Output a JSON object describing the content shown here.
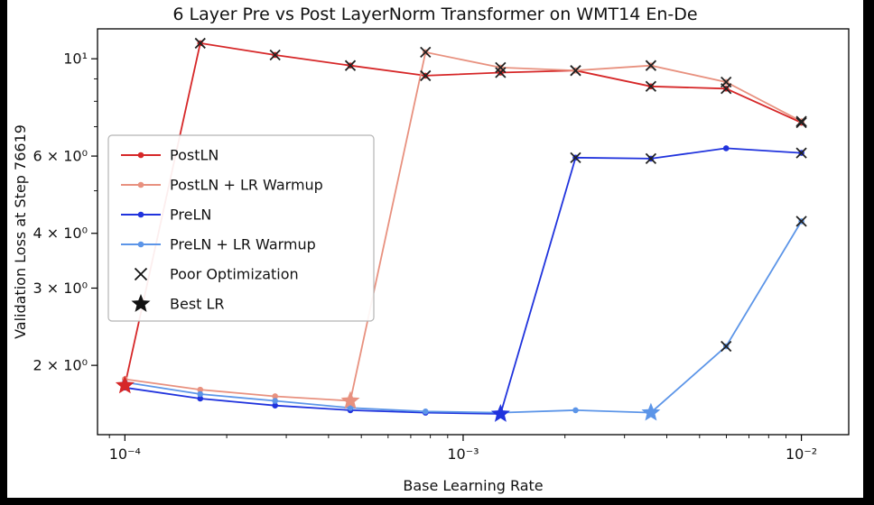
{
  "chart_data": {
    "type": "line",
    "title": "6 Layer Pre vs Post LayerNorm Transformer on WMT14 En-De",
    "xlabel": "Base Learning Rate",
    "ylabel": "Validation Loss at Step 76619",
    "x_scale": "log",
    "y_scale": "log",
    "xlim": [
      8.3e-05,
      0.0138
    ],
    "ylim": [
      1.39,
      11.7
    ],
    "grid": false,
    "legend_position": "center left",
    "x": [
      0.0001,
      0.000167,
      0.000278,
      0.000464,
      0.000774,
      0.00129,
      0.00215,
      0.00359,
      0.00599,
      0.01
    ],
    "x_major_ticks": [
      0.0001,
      0.001,
      0.01
    ],
    "x_major_tick_labels": [
      "10⁻⁴",
      "10⁻³",
      "10⁻²"
    ],
    "y_tick_values": [
      2,
      3,
      4,
      6,
      10
    ],
    "y_tick_labels": [
      "2 × 10⁰",
      "3 × 10⁰",
      "4 × 10⁰",
      "6 × 10⁰",
      "10¹"
    ],
    "y_minor_tick_values": [
      5,
      7,
      8,
      9
    ],
    "series": [
      {
        "name": "PostLN",
        "color": "#d62728",
        "values": [
          1.8,
          10.85,
          10.2,
          9.65,
          9.15,
          9.3,
          9.4,
          8.65,
          8.55,
          7.15
        ],
        "poor_optimization_idx": [
          1,
          2,
          3,
          4,
          5,
          6,
          7,
          8,
          9
        ],
        "best_lr_idx": 0
      },
      {
        "name": "PostLN + LR Warmup",
        "color": "#e8917f",
        "values": [
          1.86,
          1.76,
          1.7,
          1.66,
          10.35,
          9.55,
          9.4,
          9.65,
          8.85,
          7.2
        ],
        "poor_optimization_idx": [
          4,
          5,
          6,
          7,
          8,
          9
        ],
        "best_lr_idx": 3
      },
      {
        "name": "PreLN",
        "color": "#2033dd",
        "values": [
          1.78,
          1.68,
          1.62,
          1.58,
          1.56,
          1.55,
          5.95,
          5.92,
          6.25,
          6.1
        ],
        "poor_optimization_idx": [
          6,
          7,
          9
        ],
        "best_lr_idx": 5
      },
      {
        "name": "PreLN + LR Warmup",
        "color": "#5c95e8",
        "values": [
          1.83,
          1.72,
          1.66,
          1.6,
          1.57,
          1.56,
          1.58,
          1.56,
          2.21,
          4.26
        ],
        "poor_optimization_idx": [
          8,
          9
        ],
        "best_lr_idx": 7
      }
    ],
    "markers": {
      "poor_optimization_label": "Poor Optimization",
      "best_lr_label": "Best LR",
      "poor_marker_color": "#222222",
      "legend_marker_color": "#111111"
    }
  }
}
